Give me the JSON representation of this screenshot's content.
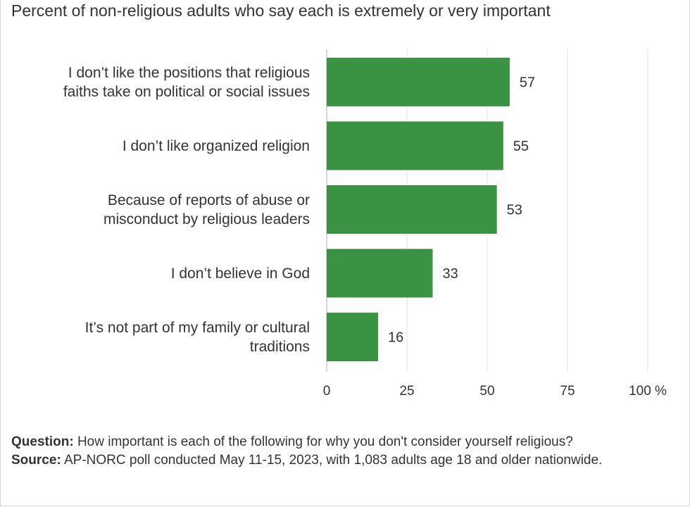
{
  "chart_data": {
    "type": "bar",
    "orientation": "horizontal",
    "title": "Percent of non-religious adults who say each is extremely or very important",
    "categories": [
      [
        "I don’t like the positions that religious",
        "faiths take on political or social issues"
      ],
      [
        "I don’t like organized religion"
      ],
      [
        "Because of reports of abuse or",
        "misconduct by religious leaders"
      ],
      [
        "I don’t believe in God"
      ],
      [
        "It’s not part of my family or cultural",
        "traditions"
      ]
    ],
    "values": [
      57,
      55,
      53,
      33,
      16
    ],
    "data_labels": [
      "57",
      "55",
      "53",
      "33",
      "16"
    ],
    "xlim": [
      0,
      100
    ],
    "x_ticks": [
      {
        "value": 0,
        "label": "0"
      },
      {
        "value": 25,
        "label": "25"
      },
      {
        "value": 50,
        "label": "50"
      },
      {
        "value": 75,
        "label": "75"
      },
      {
        "value": 100,
        "label": "100 %"
      }
    ],
    "grid": true,
    "legend": "none",
    "bar_color": "#3a9342",
    "grid_color": "#e0e0e0",
    "axis_color": "#b0b0b0"
  },
  "footer": {
    "question_label": "Question:",
    "question_text": " How important is each of the following for why you don't consider yourself religious?",
    "source_label": "Source:",
    "source_text": " AP-NORC poll conducted May 11-15, 2023, with 1,083 adults age 18 and older nationwide."
  }
}
